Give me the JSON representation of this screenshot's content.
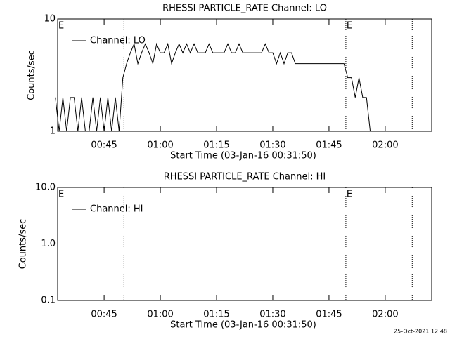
{
  "chart_data": [
    {
      "type": "line",
      "title": "RHESSI PARTICLE_RATE Channel: LO",
      "xlabel": "Start Time (03-Jan-16 00:31:50)",
      "ylabel": "Counts/sec",
      "log_y": true,
      "xlim": [
        32.6,
        132.4
      ],
      "ylim": [
        1,
        10
      ],
      "xticks": [
        {
          "value": 45,
          "label": "00:45"
        },
        {
          "value": 60,
          "label": "01:00"
        },
        {
          "value": 75,
          "label": "01:15"
        },
        {
          "value": 90,
          "label": "01:30"
        },
        {
          "value": 105,
          "label": "01:45"
        },
        {
          "value": 120,
          "label": "02:00"
        }
      ],
      "yticks": [
        1,
        10
      ],
      "flag_lines": [
        50.3,
        109.5,
        127.2
      ],
      "annotations": [
        {
          "text": "E",
          "x": 32.6
        },
        {
          "text": "E",
          "x": 109.5
        }
      ],
      "x": [
        32,
        33,
        34,
        35,
        36,
        37,
        38,
        39,
        40,
        41,
        42,
        43,
        44,
        45,
        46,
        47,
        48,
        49,
        50,
        51,
        52,
        53,
        54,
        55,
        56,
        57,
        58,
        59,
        60,
        61,
        62,
        63,
        64,
        65,
        66,
        67,
        68,
        69,
        70,
        71,
        72,
        73,
        74,
        75,
        76,
        77,
        78,
        79,
        80,
        81,
        82,
        83,
        84,
        85,
        86,
        87,
        88,
        89,
        90,
        91,
        92,
        93,
        94,
        95,
        96,
        97,
        98,
        99,
        100,
        101,
        102,
        103,
        104,
        105,
        106,
        107,
        108,
        109,
        110,
        111,
        112,
        113,
        114,
        115,
        116,
        117,
        118,
        119,
        120,
        121,
        122,
        123,
        124,
        125,
        126,
        127
      ],
      "series": [
        {
          "name": "Channel: LO",
          "color": "#000000",
          "values": [
            2,
            1,
            2,
            1,
            2,
            2,
            1,
            2,
            1,
            1,
            2,
            1,
            2,
            1,
            2,
            1,
            2,
            1,
            3,
            4,
            5,
            6,
            4,
            5,
            6,
            5,
            4,
            6,
            5,
            5,
            6,
            4,
            5,
            6,
            5,
            6,
            5,
            6,
            5,
            5,
            5,
            6,
            5,
            5,
            5,
            5,
            6,
            5,
            5,
            6,
            5,
            5,
            5,
            5,
            5,
            5,
            6,
            5,
            5,
            4,
            5,
            4,
            5,
            5,
            4,
            4,
            4,
            4,
            4,
            4,
            4,
            4,
            4,
            4,
            4,
            4,
            4,
            4,
            3,
            3,
            2,
            3,
            2,
            2,
            1,
            1,
            1,
            1,
            1,
            1,
            1,
            1,
            1,
            1,
            1,
            1
          ]
        }
      ]
    },
    {
      "type": "line",
      "title": "RHESSI PARTICLE_RATE Channel: HI",
      "xlabel": "Start Time (03-Jan-16 00:31:50)",
      "ylabel": "Counts/sec",
      "log_y": true,
      "xlim": [
        32.6,
        132.4
      ],
      "ylim": [
        0.1,
        10
      ],
      "xticks": [
        {
          "value": 45,
          "label": "00:45"
        },
        {
          "value": 60,
          "label": "01:00"
        },
        {
          "value": 75,
          "label": "01:15"
        },
        {
          "value": 90,
          "label": "01:30"
        },
        {
          "value": 105,
          "label": "01:45"
        },
        {
          "value": 120,
          "label": "02:00"
        }
      ],
      "yticks": [
        0.1,
        {
          "value": 1,
          "label": "1.0"
        },
        {
          "value": 10,
          "label": "10.0"
        }
      ],
      "flag_lines": [
        50.3,
        109.5,
        127.2
      ],
      "annotations": [
        {
          "text": "E",
          "x": 32.6
        },
        {
          "text": "E",
          "x": 109.5
        }
      ],
      "x": [],
      "series": [
        {
          "name": "Channel: HI",
          "color": "#000000",
          "values": []
        }
      ]
    }
  ],
  "footer": "25-Oct-2021 12:48"
}
